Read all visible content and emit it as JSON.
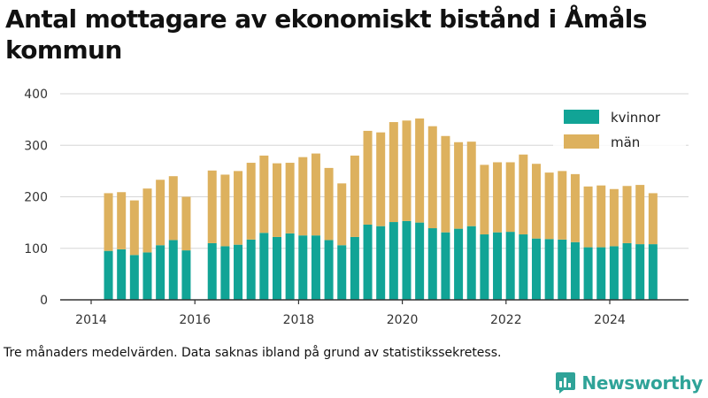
{
  "header": {
    "title": "Antal mottagare av ekonomiskt bistånd i Åmåls kommun"
  },
  "footer": {
    "caption": "Tre månaders medelvärden. Data saknas ibland på grund av statistikssekretess.",
    "brand": "Newsworthy",
    "brand_icon": "newsworthy-logo-icon"
  },
  "chart_data": {
    "type": "bar",
    "stacked": true,
    "title": "Antal mottagare av ekonomiskt bistånd i Åmåls kommun",
    "xlabel": "",
    "ylabel": "",
    "ylim": [
      0,
      400
    ],
    "yticks": [
      0,
      100,
      200,
      300,
      400
    ],
    "xlim": [
      "2013-10",
      "2025-08"
    ],
    "xticks": [
      "2014",
      "2016",
      "2018",
      "2020",
      "2022",
      "2024"
    ],
    "grid": true,
    "legend_position": "top-right",
    "x": [
      "2014-05",
      "2014-08",
      "2014-11",
      "2015-02",
      "2015-05",
      "2015-08",
      "2015-11",
      "2016-05",
      "2016-08",
      "2016-11",
      "2017-02",
      "2017-05",
      "2017-08",
      "2017-11",
      "2018-02",
      "2018-05",
      "2018-08",
      "2018-11",
      "2019-02",
      "2019-05",
      "2019-08",
      "2019-11",
      "2020-02",
      "2020-05",
      "2020-08",
      "2020-11",
      "2021-02",
      "2021-05",
      "2021-08",
      "2021-11",
      "2022-02",
      "2022-05",
      "2022-08",
      "2022-11",
      "2023-02",
      "2023-05",
      "2023-08",
      "2023-11",
      "2024-02",
      "2024-05",
      "2024-08",
      "2024-11"
    ],
    "series": [
      {
        "name": "kvinnor",
        "color": "#11a496",
        "values": [
          95,
          98,
          87,
          92,
          106,
          116,
          96,
          110,
          104,
          107,
          117,
          130,
          122,
          129,
          125,
          125,
          116,
          106,
          122,
          146,
          143,
          151,
          153,
          150,
          139,
          131,
          138,
          143,
          127,
          131,
          132,
          127,
          119,
          118,
          117,
          112,
          102,
          102,
          104,
          110,
          108,
          108
        ]
      },
      {
        "name": "män",
        "color": "#ddb15e",
        "values": [
          112,
          111,
          106,
          124,
          127,
          124,
          104,
          141,
          139,
          143,
          149,
          150,
          143,
          137,
          152,
          159,
          140,
          120,
          158,
          182,
          182,
          194,
          195,
          202,
          198,
          187,
          168,
          164,
          135,
          136,
          135,
          155,
          145,
          129,
          133,
          132,
          118,
          120,
          111,
          111,
          115,
          99
        ]
      }
    ]
  }
}
